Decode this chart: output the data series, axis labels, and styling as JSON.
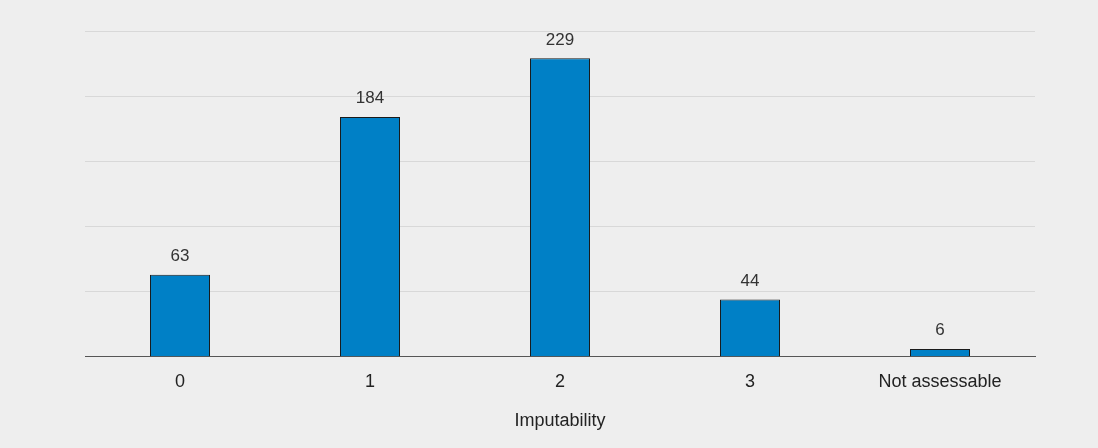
{
  "chart_data": {
    "type": "bar",
    "xlabel": "Imputability",
    "categories": [
      "0",
      "1",
      "2",
      "3",
      "Not assessable"
    ],
    "values": [
      63,
      184,
      229,
      44,
      6
    ],
    "color": "#0080c6",
    "ylim": [
      0,
      250
    ],
    "yticks": [
      {
        "value": 0,
        "label": null
      },
      {
        "value": 50,
        "label": null
      },
      {
        "value": 100,
        "label": null
      },
      {
        "value": 150,
        "label": null
      },
      {
        "value": 200,
        "label": null
      },
      {
        "value": 250,
        "label": null
      }
    ],
    "tick_labels": "x",
    "grid": "y",
    "data_labels": true
  }
}
